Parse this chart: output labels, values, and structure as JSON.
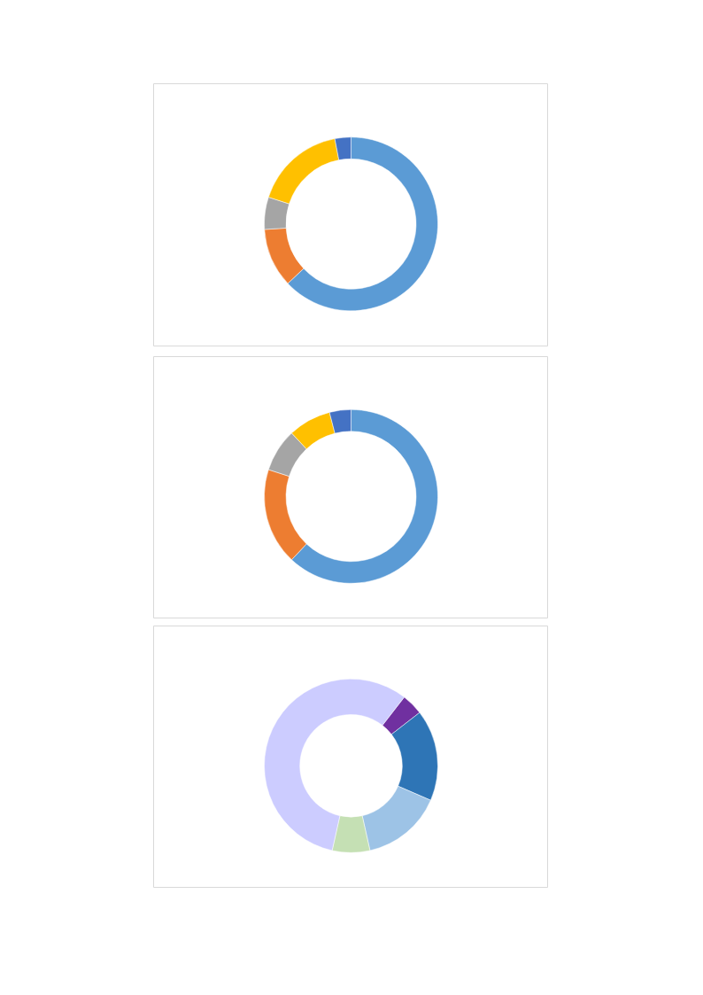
{
  "chart_data": [
    {
      "type": "donut",
      "categories": [
        null,
        null,
        null,
        null,
        null
      ],
      "values": [
        63,
        11,
        6,
        17,
        3
      ],
      "colors": [
        "#5b9bd5",
        "#ed7d31",
        "#a5a5a5",
        "#ffc000",
        "#4472c4"
      ]
    },
    {
      "type": "donut",
      "categories": [
        null,
        null,
        null,
        null,
        null
      ],
      "values": [
        62,
        18,
        8,
        8,
        4
      ],
      "colors": [
        "#5b9bd5",
        "#ed7d31",
        "#a5a5a5",
        "#ffc000",
        "#4472c4"
      ]
    },
    {
      "type": "donut",
      "categories": [
        null,
        null,
        null,
        null,
        null
      ],
      "values": [
        4,
        17,
        15,
        7,
        57
      ],
      "colors": [
        "#7030a0",
        "#2e75b6",
        "#9dc3e6",
        "#c5e0b4",
        "#ccccff"
      ]
    }
  ]
}
